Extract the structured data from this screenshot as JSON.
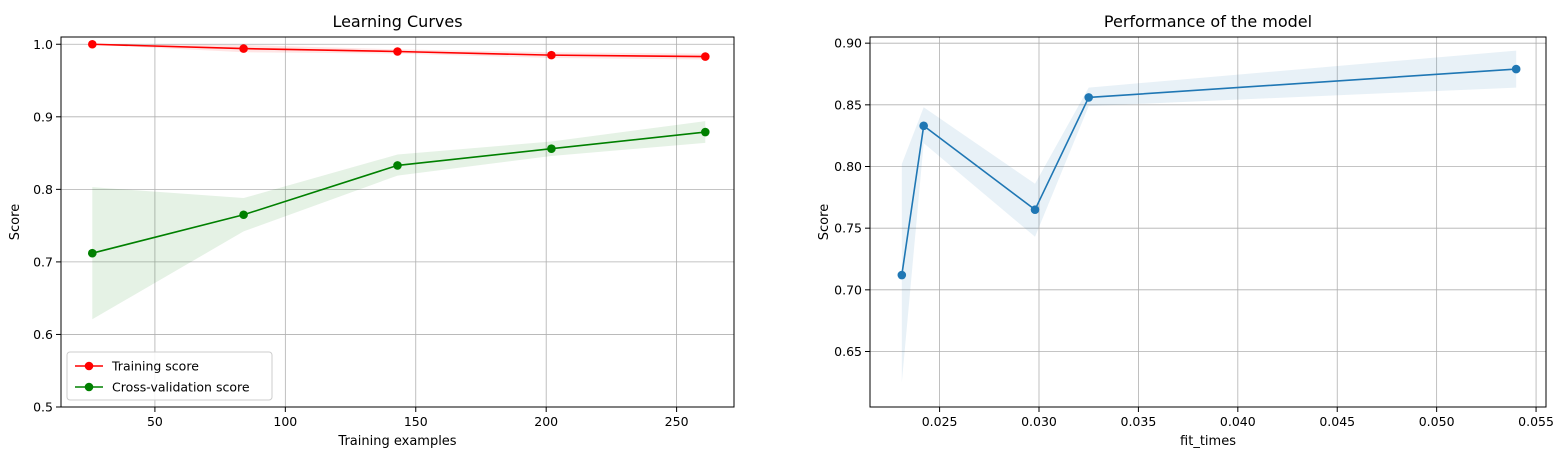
{
  "chart_data": [
    {
      "type": "line",
      "title": "Learning Curves",
      "xlabel": "Training examples",
      "ylabel": "Score",
      "xlim": [
        14,
        272
      ],
      "ylim": [
        0.5,
        1.01
      ],
      "xticks": [
        50,
        100,
        150,
        200,
        250
      ],
      "xtick_labels": [
        "50",
        "100",
        "150",
        "200",
        "250"
      ],
      "yticks": [
        0.5,
        0.6,
        0.7,
        0.8,
        0.9,
        1.0
      ],
      "ytick_labels": [
        "0.5",
        "0.6",
        "0.7",
        "0.8",
        "0.9",
        "1.0"
      ],
      "grid": true,
      "legend": "lower-left",
      "x": [
        26,
        84,
        143,
        202,
        261
      ],
      "series": [
        {
          "name": "Training score",
          "color": "#ff0000",
          "values": [
            1.0,
            0.994,
            0.99,
            0.985,
            0.983
          ],
          "band_low": [
            0.9995,
            0.989,
            0.987,
            0.981,
            0.979
          ],
          "band_high": [
            1.0,
            0.999,
            0.993,
            0.989,
            0.987
          ]
        },
        {
          "name": "Cross-validation score",
          "color": "#008000",
          "values": [
            0.712,
            0.765,
            0.833,
            0.856,
            0.879
          ],
          "band_low": [
            0.621,
            0.742,
            0.819,
            0.846,
            0.864
          ],
          "band_high": [
            0.803,
            0.788,
            0.848,
            0.866,
            0.894
          ]
        }
      ]
    },
    {
      "type": "line",
      "title": "Performance of the model",
      "xlabel": "fit_times",
      "ylabel": "Score",
      "xlim": [
        0.0215,
        0.0555
      ],
      "ylim": [
        0.605,
        0.905
      ],
      "xticks": [
        0.025,
        0.03,
        0.035,
        0.04,
        0.045,
        0.05,
        0.055
      ],
      "xtick_labels": [
        "0.025",
        "0.030",
        "0.035",
        "0.040",
        "0.045",
        "0.050",
        "0.055"
      ],
      "yticks": [
        0.65,
        0.7,
        0.75,
        0.8,
        0.85,
        0.9
      ],
      "ytick_labels": [
        "0.65",
        "0.70",
        "0.75",
        "0.80",
        "0.85",
        "0.90"
      ],
      "grid": true,
      "x": [
        0.0231,
        0.0242,
        0.0298,
        0.0325,
        0.054
      ],
      "series": [
        {
          "color": "#1f77b4",
          "values": [
            0.712,
            0.833,
            0.765,
            0.856,
            0.879
          ],
          "band_low": [
            0.625,
            0.819,
            0.743,
            0.849,
            0.864
          ],
          "band_high": [
            0.802,
            0.848,
            0.786,
            0.864,
            0.894
          ]
        }
      ]
    }
  ]
}
